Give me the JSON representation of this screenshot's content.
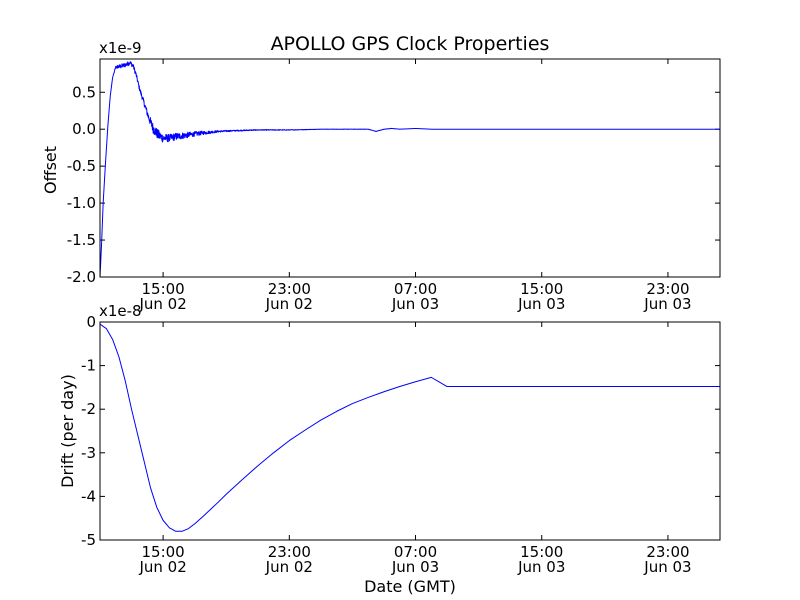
{
  "chart_data": [
    {
      "type": "line",
      "title": "APOLLO GPS Clock Properties",
      "ylabel": "Offset",
      "xlabel": "",
      "offset_label": "x1e-9",
      "x_unit": "hours since 2012-06-02 11:00 GMT",
      "xlim": [
        0,
        39.3
      ],
      "ylim": [
        -2.0,
        0.95
      ],
      "grid": false,
      "yticks": [
        {
          "value": 0.5,
          "label": "0.5"
        },
        {
          "value": 0.0,
          "label": "0.0"
        },
        {
          "value": -0.5,
          "label": "-0.5"
        },
        {
          "value": -1.0,
          "label": "-1.0"
        },
        {
          "value": -1.5,
          "label": "-1.5"
        },
        {
          "value": -2.0,
          "label": "-2.0"
        }
      ],
      "xticks": [
        {
          "value": 4,
          "time": "15:00",
          "date": "Jun 02"
        },
        {
          "value": 12,
          "time": "23:00",
          "date": "Jun 02"
        },
        {
          "value": 20,
          "time": "07:00",
          "date": "Jun 03"
        },
        {
          "value": 28,
          "time": "15:00",
          "date": "Jun 03"
        },
        {
          "value": 36,
          "time": "23:00",
          "date": "Jun 03"
        }
      ],
      "series": [
        {
          "name": "",
          "color": "#0000ff",
          "x": [
            0,
            0.1,
            0.2,
            0.35,
            0.5,
            0.65,
            0.8,
            1.0,
            1.3,
            1.6,
            1.9,
            2.1,
            2.3,
            2.5,
            2.8,
            3.1,
            3.4,
            3.7,
            4.0,
            4.4,
            4.8,
            5.5,
            6.5,
            7.5,
            8.5,
            10,
            12,
            14,
            16,
            17,
            17.5,
            18,
            18.5,
            19,
            20,
            21,
            22,
            24,
            28,
            32,
            36,
            39.3
          ],
          "y": [
            -2.0,
            -1.55,
            -1.0,
            -0.45,
            0.05,
            0.45,
            0.7,
            0.84,
            0.85,
            0.87,
            0.9,
            0.86,
            0.73,
            0.55,
            0.35,
            0.15,
            0.0,
            -0.08,
            -0.12,
            -0.12,
            -0.1,
            -0.08,
            -0.05,
            -0.03,
            -0.02,
            -0.01,
            -0.01,
            0.0,
            0.0,
            0.0,
            -0.03,
            0.0,
            0.01,
            0.0,
            0.01,
            0.0,
            0.0,
            0.0,
            0.0,
            0.0,
            0.0,
            0.0
          ],
          "noise": [
            0,
            0,
            0,
            0,
            0,
            0,
            0,
            0.02,
            0.03,
            0.03,
            0.03,
            0.03,
            0.03,
            0.03,
            0.04,
            0.05,
            0.07,
            0.07,
            0.06,
            0.05,
            0.05,
            0.04,
            0.025,
            0.012,
            0.008,
            0.006,
            0.004,
            0.002,
            0.002,
            0.002,
            0.002,
            0.002,
            0.002,
            0.001,
            0,
            0,
            0,
            0,
            0,
            0,
            0,
            0
          ]
        }
      ]
    },
    {
      "type": "line",
      "title": "",
      "ylabel": "Drift (per day)",
      "xlabel": "Date (GMT)",
      "offset_label": "x1e-8",
      "x_unit": "hours since 2012-06-02 11:00 GMT",
      "xlim": [
        0,
        39.3
      ],
      "ylim": [
        -5,
        0
      ],
      "grid": false,
      "yticks": [
        {
          "value": 0,
          "label": "0"
        },
        {
          "value": -1,
          "label": "-1"
        },
        {
          "value": -2,
          "label": "-2"
        },
        {
          "value": -3,
          "label": "-3"
        },
        {
          "value": -4,
          "label": "-4"
        },
        {
          "value": -5,
          "label": "-5"
        }
      ],
      "xticks": [
        {
          "value": 4,
          "time": "15:00",
          "date": "Jun 02"
        },
        {
          "value": 12,
          "time": "23:00",
          "date": "Jun 02"
        },
        {
          "value": 20,
          "time": "07:00",
          "date": "Jun 03"
        },
        {
          "value": 28,
          "time": "15:00",
          "date": "Jun 03"
        },
        {
          "value": 36,
          "time": "23:00",
          "date": "Jun 03"
        }
      ],
      "series": [
        {
          "name": "",
          "color": "#0000ff",
          "x": [
            0,
            0.4,
            0.8,
            1.2,
            1.6,
            2.0,
            2.4,
            2.8,
            3.2,
            3.6,
            4.0,
            4.4,
            4.8,
            5.2,
            5.6,
            6.0,
            6.5,
            7.0,
            7.5,
            8,
            9,
            10,
            11,
            12,
            13,
            14,
            15,
            16,
            17,
            18,
            19,
            20,
            21,
            22,
            22.1,
            25,
            30,
            35,
            39.3
          ],
          "y": [
            -0.05,
            -0.15,
            -0.4,
            -0.8,
            -1.35,
            -2.0,
            -2.6,
            -3.2,
            -3.8,
            -4.25,
            -4.55,
            -4.72,
            -4.8,
            -4.8,
            -4.74,
            -4.63,
            -4.47,
            -4.3,
            -4.13,
            -3.95,
            -3.62,
            -3.3,
            -3.0,
            -2.72,
            -2.48,
            -2.25,
            -2.05,
            -1.87,
            -1.73,
            -1.6,
            -1.48,
            -1.37,
            -1.27,
            -1.48,
            -1.48,
            -1.48,
            -1.48,
            -1.48,
            -1.48
          ]
        }
      ]
    }
  ]
}
